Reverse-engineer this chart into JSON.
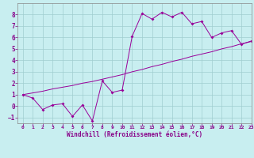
{
  "xlabel": "Windchill (Refroidissement éolien,°C)",
  "background_color": "#c8eef0",
  "line_color": "#990099",
  "grid_color": "#a0cdd0",
  "x_data": [
    0,
    1,
    2,
    3,
    4,
    5,
    6,
    7,
    8,
    9,
    10,
    11,
    12,
    13,
    14,
    15,
    16,
    17,
    18,
    19,
    20,
    21,
    22,
    23
  ],
  "y_zigzag": [
    1.0,
    0.7,
    -0.3,
    0.1,
    0.2,
    -0.9,
    0.1,
    -1.3,
    2.2,
    1.2,
    1.4,
    6.1,
    8.1,
    7.6,
    8.2,
    7.8,
    8.2,
    7.2,
    7.4,
    6.0,
    6.4,
    6.6,
    5.4,
    5.7
  ],
  "y_trend": [
    1.0,
    1.15,
    1.3,
    1.5,
    1.65,
    1.8,
    2.0,
    2.15,
    2.35,
    2.55,
    2.75,
    3.0,
    3.2,
    3.45,
    3.65,
    3.9,
    4.1,
    4.35,
    4.55,
    4.75,
    5.0,
    5.2,
    5.45,
    5.65
  ],
  "xlim": [
    -0.5,
    23
  ],
  "ylim": [
    -1.5,
    9.0
  ],
  "yticks": [
    -1,
    0,
    1,
    2,
    3,
    4,
    5,
    6,
    7,
    8
  ],
  "xticks": [
    0,
    1,
    2,
    3,
    4,
    5,
    6,
    7,
    8,
    9,
    10,
    11,
    12,
    13,
    14,
    15,
    16,
    17,
    18,
    19,
    20,
    21,
    22,
    23
  ]
}
